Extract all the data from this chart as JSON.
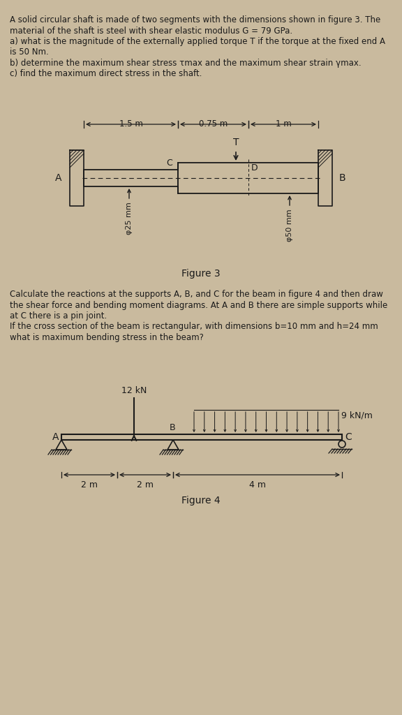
{
  "bg_color": "#c9ba9e",
  "text_color": "#1a1a1a",
  "fig_width": 5.76,
  "fig_height": 10.24,
  "problem1_lines": [
    "A solid circular shaft is made of two segments with the dimensions shown in figure 3. The",
    "material of the shaft is steel with shear elastic modulus G = 79 GPa.",
    "a) what is the magnitude of the externally applied torque T if the torque at the fixed end A",
    "is 50 Nm.",
    "b) determine the maximum shear stress τmax and the maximum shear strain γmax.",
    "c) find the maximum direct stress in the shaft."
  ],
  "fig3_caption": "Figure 3",
  "fig3_dim1": "1.5 m",
  "fig3_dim2": "0.75 m",
  "fig3_dim3": "1 m",
  "fig3_phi1": "φ25 mm",
  "fig3_phi2": "φ50 mm",
  "label_A3": "A",
  "label_B3": "B",
  "label_C3": "C",
  "label_D3": "D",
  "label_T3": "T",
  "problem2_lines": [
    "Calculate the reactions at the supports A, B, and C for the beam in figure 4 and then draw",
    "the shear force and bending moment diagrams. At A and B there are simple supports while",
    "at C there is a pin joint.",
    "If the cross section of the beam is rectangular, with dimensions b=10 mm and h=24 mm",
    "what is maximum bending stress in the beam?"
  ],
  "fig4_caption": "Figure 4",
  "fig4_load": "12 kN",
  "fig4_udl": "9 kN/m",
  "fig4_dim1": "2 m",
  "fig4_dim2": "2 m",
  "fig4_dim3": "4 m",
  "label_A4": "A",
  "label_B4": "B",
  "label_C4": "C"
}
